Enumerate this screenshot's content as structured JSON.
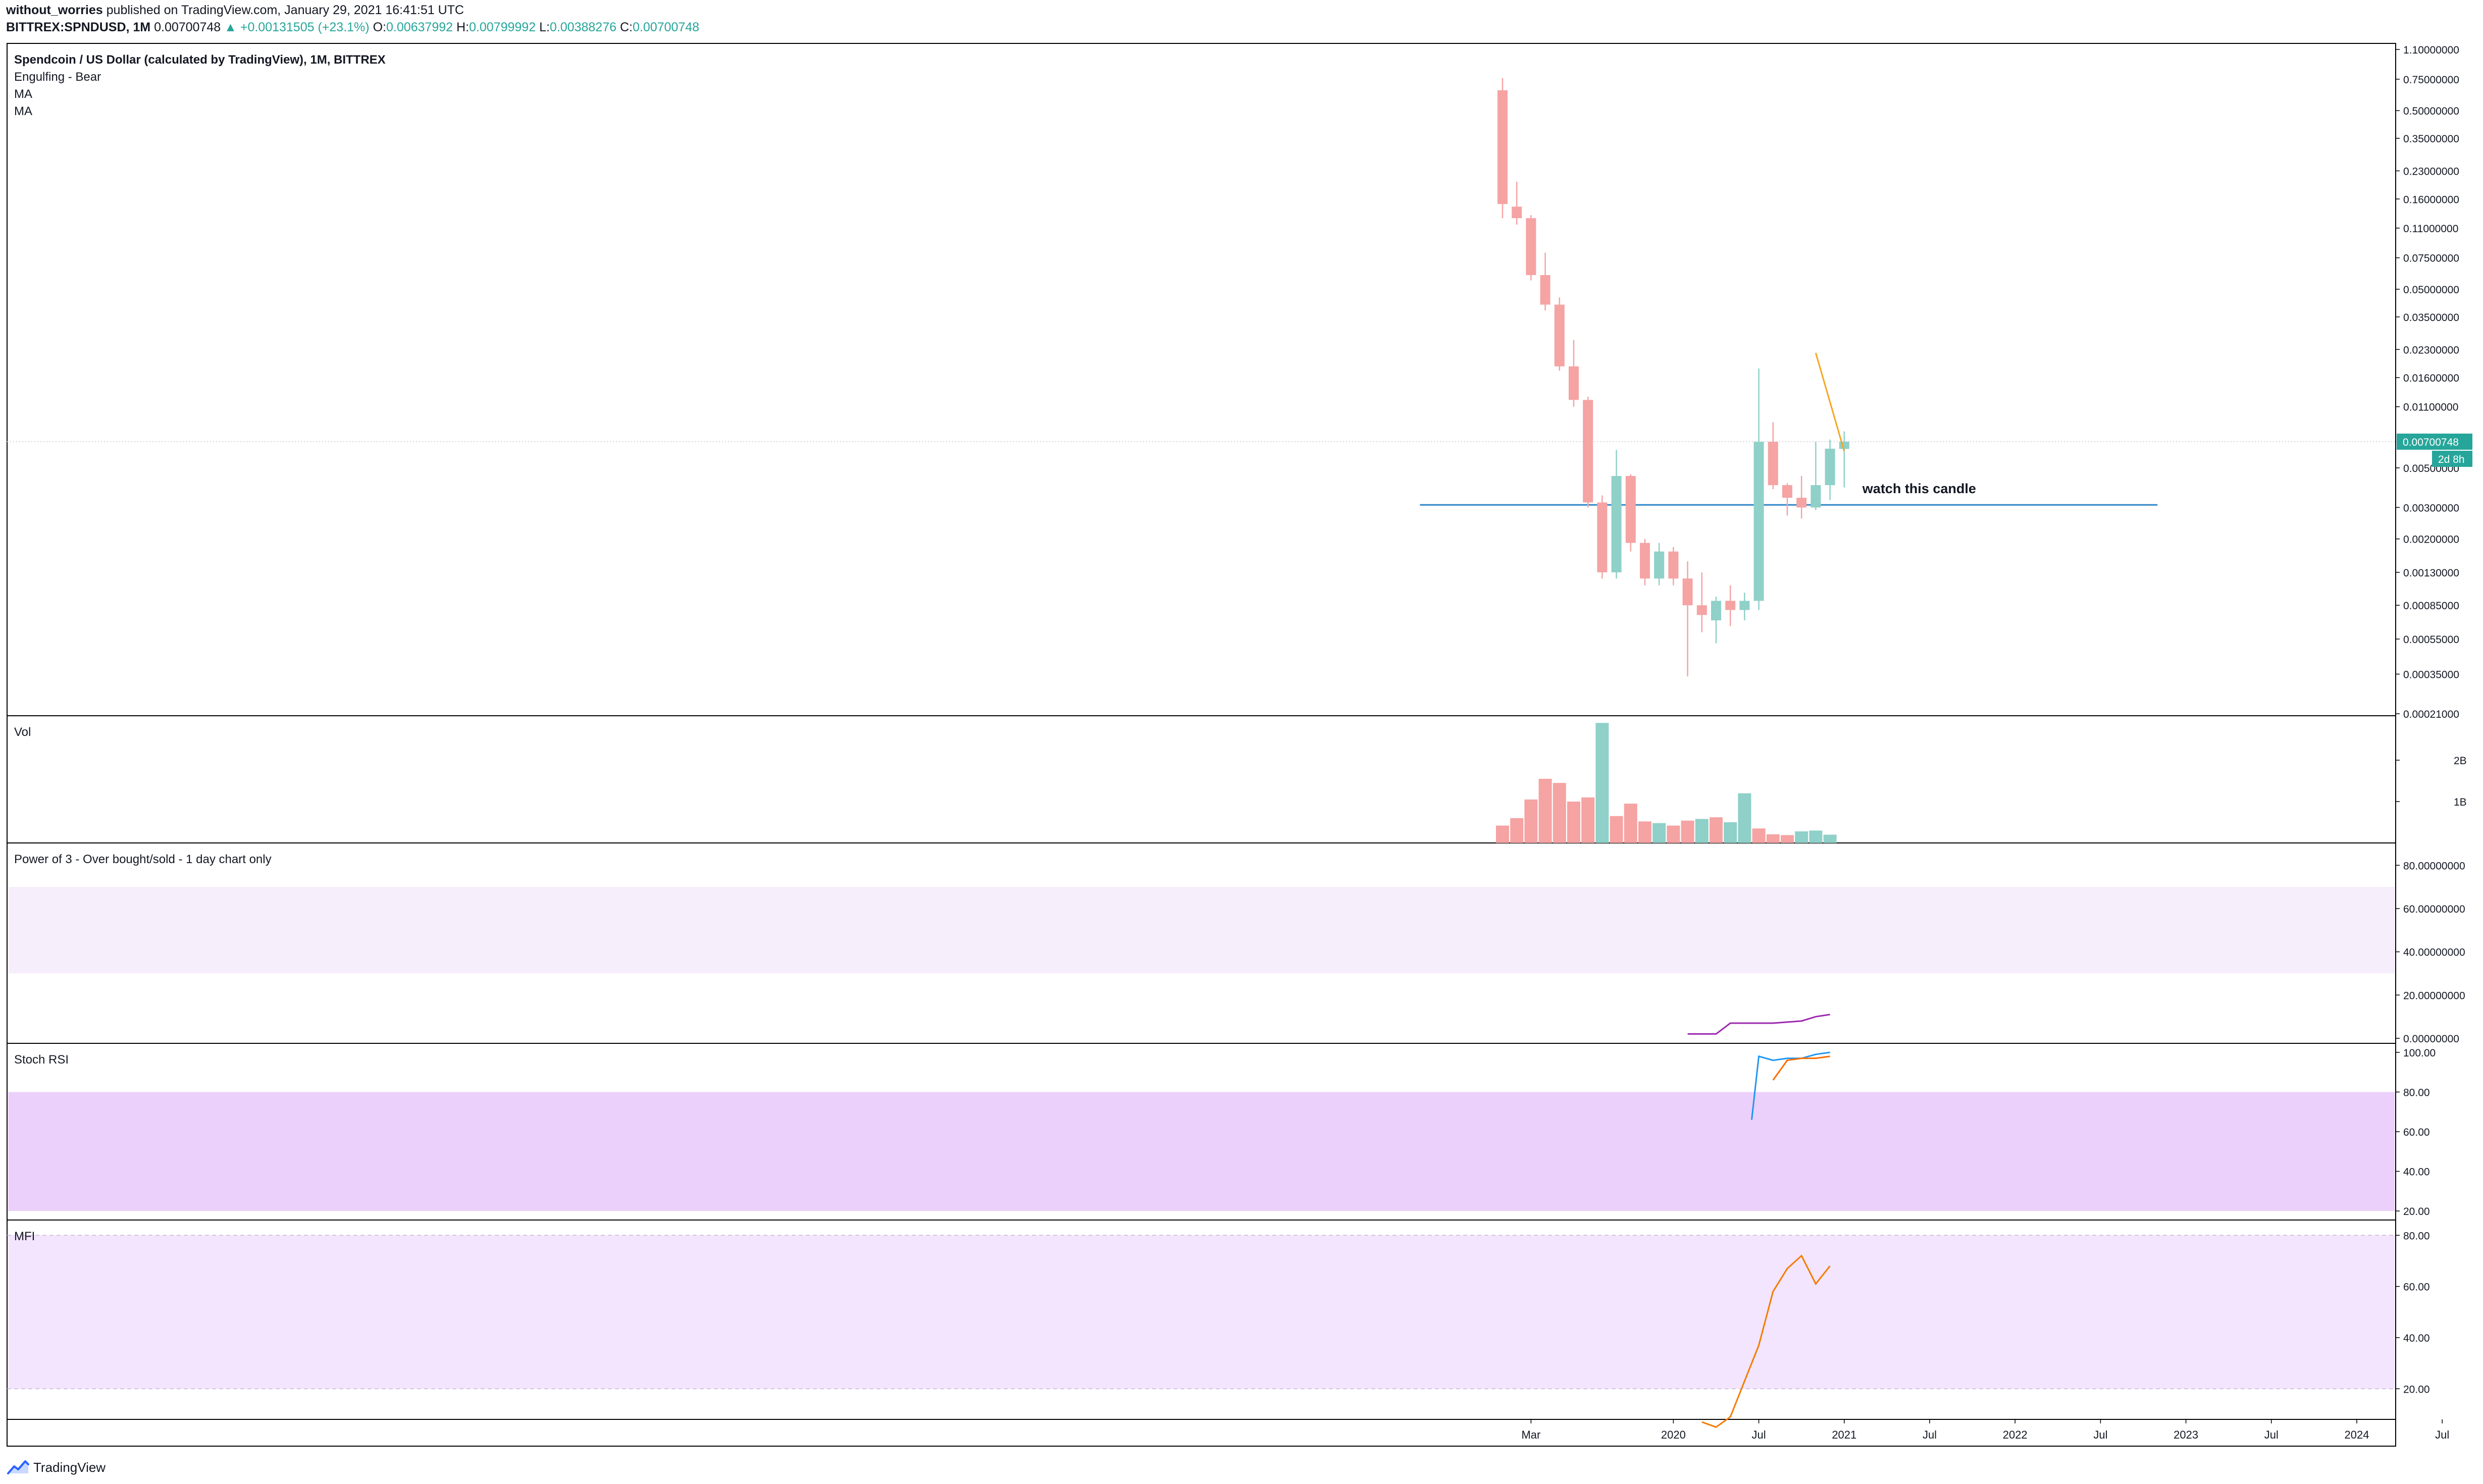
{
  "header": {
    "author": "without_worries",
    "published": "published on TradingView.com, January 29, 2021 16:41:51 UTC",
    "symbol": "BITTREX:SPNDUSD, 1M",
    "last": "0.00700748",
    "change_arrow": "▲",
    "change": "+0.00131505 (+23.1%)",
    "o_label": "O:",
    "o": "0.00637992",
    "h_label": "H:",
    "h": "0.00799992",
    "l_label": "L:",
    "l": "0.00388276",
    "c_label": "C:",
    "c": "0.00700748"
  },
  "colors": {
    "up": "#26a69a",
    "down": "#ef5350",
    "up_fill": "#8fd0c8",
    "down_fill": "#f5a3a3",
    "hline": "#2e86c9",
    "ma_orange": "#f5a623",
    "purple": "#9c27b0",
    "stoch_k": "#2196f3",
    "stoch_d": "#ff6d00",
    "mfi": "#f57c00",
    "band_light": "#f6eefb",
    "band_stoch": "#ebd0fb",
    "band_mfi": "#f3e5fd",
    "axis_text": "#131722",
    "grid": "#e0e3eb"
  },
  "brand": {
    "icon": "tradingview-logo-icon",
    "label": "TradingView"
  },
  "chart_data": [
    {
      "type": "candlestick",
      "title": "Spendcoin / US Dollar (calculated by TradingView), 1M, BITTREX",
      "indicator_labels": [
        "Engulfing - Bear",
        "MA",
        "MA"
      ],
      "scale": "log",
      "ylim": [
        0.00021,
        1.1
      ],
      "y_ticks": [
        "1.10000000",
        "0.75000000",
        "0.50000000",
        "0.35000000",
        "0.23000000",
        "0.16000000",
        "0.11000000",
        "0.07500000",
        "0.05000000",
        "0.03500000",
        "0.02300000",
        "0.01600000",
        "0.01100000",
        "0.00500000",
        "0.00300000",
        "0.00200000",
        "0.00130000",
        "0.00085000",
        "0.00055000",
        "0.00035000",
        "0.00021000"
      ],
      "x_ticks": [
        "Mar",
        "2020",
        "Jul",
        "2021",
        "Jul",
        "2022",
        "Jul",
        "2023",
        "Jul",
        "2024",
        "Jul"
      ],
      "x_tick_month_index": [
        2,
        12,
        18,
        24,
        30,
        36,
        42,
        48,
        54,
        60,
        66
      ],
      "month_index_0": "2019-01",
      "candles": [
        {
          "t": 0,
          "o": 0.65,
          "h": 0.76,
          "l": 0.125,
          "c": 0.15
        },
        {
          "t": 1,
          "o": 0.145,
          "h": 0.2,
          "l": 0.115,
          "c": 0.125
        },
        {
          "t": 2,
          "o": 0.125,
          "h": 0.13,
          "l": 0.056,
          "c": 0.06
        },
        {
          "t": 3,
          "o": 0.06,
          "h": 0.08,
          "l": 0.038,
          "c": 0.041
        },
        {
          "t": 4,
          "o": 0.041,
          "h": 0.045,
          "l": 0.0175,
          "c": 0.0185
        },
        {
          "t": 5,
          "o": 0.0185,
          "h": 0.026,
          "l": 0.011,
          "c": 0.012
        },
        {
          "t": 6,
          "o": 0.012,
          "h": 0.0125,
          "l": 0.003,
          "c": 0.0032
        },
        {
          "t": 7,
          "o": 0.0032,
          "h": 0.0035,
          "l": 0.0012,
          "c": 0.0013
        },
        {
          "t": 8,
          "o": 0.0013,
          "h": 0.0063,
          "l": 0.0012,
          "c": 0.0045
        },
        {
          "t": 9,
          "o": 0.0045,
          "h": 0.0046,
          "l": 0.0017,
          "c": 0.0019
        },
        {
          "t": 10,
          "o": 0.0019,
          "h": 0.002,
          "l": 0.0011,
          "c": 0.0012
        },
        {
          "t": 11,
          "o": 0.0012,
          "h": 0.0019,
          "l": 0.0011,
          "c": 0.0017
        },
        {
          "t": 12,
          "o": 0.0017,
          "h": 0.0018,
          "l": 0.0011,
          "c": 0.0012
        },
        {
          "t": 13,
          "o": 0.0012,
          "h": 0.0015,
          "l": 0.00034,
          "c": 0.00085
        },
        {
          "t": 14,
          "o": 0.00085,
          "h": 0.0013,
          "l": 0.0006,
          "c": 0.00075
        },
        {
          "t": 15,
          "o": 0.0007,
          "h": 0.00095,
          "l": 0.00052,
          "c": 0.0009
        },
        {
          "t": 16,
          "o": 0.0009,
          "h": 0.0011,
          "l": 0.00065,
          "c": 0.0008
        },
        {
          "t": 17,
          "o": 0.0008,
          "h": 0.001,
          "l": 0.0007,
          "c": 0.0009
        },
        {
          "t": 18,
          "o": 0.0009,
          "h": 0.018,
          "l": 0.0008,
          "c": 0.007
        },
        {
          "t": 19,
          "o": 0.007,
          "h": 0.009,
          "l": 0.0038,
          "c": 0.004
        },
        {
          "t": 20,
          "o": 0.004,
          "h": 0.0041,
          "l": 0.0027,
          "c": 0.0034
        },
        {
          "t": 21,
          "o": 0.0034,
          "h": 0.0045,
          "l": 0.0026,
          "c": 0.003
        },
        {
          "t": 22,
          "o": 0.003,
          "h": 0.007,
          "l": 0.0029,
          "c": 0.004
        },
        {
          "t": 23,
          "o": 0.004,
          "h": 0.0072,
          "l": 0.0033,
          "c": 0.0064
        },
        {
          "t": 24,
          "o": 0.00637992,
          "h": 0.00799992,
          "l": 0.00388276,
          "c": 0.00700748
        }
      ],
      "horizontal_line": {
        "price": 0.0031,
        "from_t": -5.8,
        "to_t": 46
      },
      "ma_line": [
        {
          "t": 22,
          "v": 0.022
        },
        {
          "t": 24,
          "v": 0.0062
        }
      ],
      "reference_line": 0.00700748,
      "last_price_label": "0.00700748",
      "countdown_label": "2d 8h",
      "annotation": "watch this candle"
    },
    {
      "type": "bar",
      "title": "Vol",
      "y_ticks": [
        "2B",
        "1B"
      ],
      "y_tick_values": [
        2000000000,
        1000000000
      ],
      "values": [
        {
          "t": 0,
          "v": 420000000,
          "dir": "down"
        },
        {
          "t": 1,
          "v": 600000000,
          "dir": "down"
        },
        {
          "t": 2,
          "v": 1050000000,
          "dir": "down"
        },
        {
          "t": 3,
          "v": 1550000000,
          "dir": "down"
        },
        {
          "t": 4,
          "v": 1450000000,
          "dir": "down"
        },
        {
          "t": 5,
          "v": 1000000000,
          "dir": "down"
        },
        {
          "t": 6,
          "v": 1100000000,
          "dir": "down"
        },
        {
          "t": 7,
          "v": 2900000000,
          "dir": "up"
        },
        {
          "t": 8,
          "v": 650000000,
          "dir": "down"
        },
        {
          "t": 9,
          "v": 950000000,
          "dir": "down"
        },
        {
          "t": 10,
          "v": 520000000,
          "dir": "down"
        },
        {
          "t": 11,
          "v": 480000000,
          "dir": "up"
        },
        {
          "t": 12,
          "v": 420000000,
          "dir": "down"
        },
        {
          "t": 13,
          "v": 540000000,
          "dir": "down"
        },
        {
          "t": 14,
          "v": 580000000,
          "dir": "up"
        },
        {
          "t": 15,
          "v": 620000000,
          "dir": "down"
        },
        {
          "t": 16,
          "v": 500000000,
          "dir": "up"
        },
        {
          "t": 17,
          "v": 1200000000,
          "dir": "up"
        },
        {
          "t": 18,
          "v": 350000000,
          "dir": "down"
        },
        {
          "t": 19,
          "v": 210000000,
          "dir": "down"
        },
        {
          "t": 20,
          "v": 190000000,
          "dir": "down"
        },
        {
          "t": 21,
          "v": 280000000,
          "dir": "up"
        },
        {
          "t": 22,
          "v": 300000000,
          "dir": "up"
        },
        {
          "t": 23,
          "v": 200000000,
          "dir": "up"
        }
      ]
    },
    {
      "type": "line",
      "title": "Power of 3 - Over bought/sold - 1 day chart only",
      "ylim": [
        0,
        88
      ],
      "y_ticks": [
        "80.00000000",
        "60.00000000",
        "40.00000000",
        "20.00000000",
        "0.00000000"
      ],
      "y_tick_values": [
        80,
        60,
        40,
        20,
        0
      ],
      "bands": [
        [
          30,
          70
        ]
      ],
      "series": [
        {
          "values": [
            {
              "t": 13,
              "v": 2
            },
            {
              "t": 15,
              "v": 2
            },
            {
              "t": 16,
              "v": 7
            },
            {
              "t": 19,
              "v": 7
            },
            {
              "t": 20,
              "v": 7.5
            },
            {
              "t": 21,
              "v": 8
            },
            {
              "t": 22,
              "v": 10
            },
            {
              "t": 23,
              "v": 11
            }
          ]
        }
      ]
    },
    {
      "type": "line",
      "title": "Stoch RSI",
      "ylim": [
        18,
        102
      ],
      "y_ticks": [
        "100.00",
        "80.00",
        "60.00",
        "40.00",
        "20.00"
      ],
      "y_tick_values": [
        100,
        80,
        60,
        40,
        20
      ],
      "bands": [
        [
          20,
          80
        ]
      ],
      "series": [
        {
          "values": [
            {
              "t": 17.5,
              "v": 66
            },
            {
              "t": 18,
              "v": 98
            },
            {
              "t": 19,
              "v": 96
            },
            {
              "t": 20,
              "v": 97
            },
            {
              "t": 21,
              "v": 97
            },
            {
              "t": 22,
              "v": 99
            },
            {
              "t": 23,
              "v": 100
            }
          ]
        },
        {
          "values": [
            {
              "t": 19,
              "v": 86
            },
            {
              "t": 20,
              "v": 96
            },
            {
              "t": 21,
              "v": 97
            },
            {
              "t": 22,
              "v": 97
            },
            {
              "t": 23,
              "v": 98
            }
          ]
        }
      ]
    },
    {
      "type": "line",
      "title": "MFI",
      "ylim": [
        10,
        84
      ],
      "y_ticks": [
        "80.00",
        "60.00",
        "40.00",
        "20.00"
      ],
      "y_tick_values": [
        80,
        60,
        40,
        20
      ],
      "bands": [
        [
          20,
          80
        ]
      ],
      "series": [
        {
          "values": [
            {
              "t": 14,
              "v": 7
            },
            {
              "t": 15,
              "v": 5
            },
            {
              "t": 16,
              "v": 9
            },
            {
              "t": 17,
              "v": 23
            },
            {
              "t": 18,
              "v": 37
            },
            {
              "t": 19,
              "v": 58
            },
            {
              "t": 20,
              "v": 67
            },
            {
              "t": 21,
              "v": 72
            },
            {
              "t": 22,
              "v": 61
            },
            {
              "t": 23,
              "v": 68
            }
          ]
        }
      ]
    }
  ]
}
